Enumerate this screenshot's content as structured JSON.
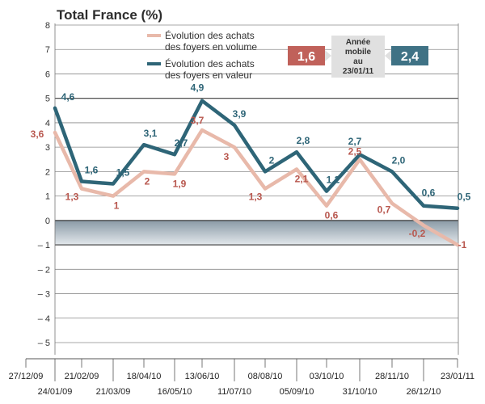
{
  "chart_data": {
    "type": "line",
    "title": "Total France (%)",
    "ylim": [
      -5.3,
      8.3
    ],
    "y_ticks": [
      8,
      7,
      6,
      5,
      4,
      3,
      2,
      1,
      0,
      -1,
      -2,
      -3,
      -4,
      -5
    ],
    "y_tick_labels": [
      "8",
      "7",
      "6",
      "5",
      "4",
      "3",
      "2",
      "1",
      "0",
      "– 1",
      "– 2",
      "– 3",
      "– 4",
      "– 5"
    ],
    "grid": true,
    "x_dates": [
      "27/12/09",
      "24/01/09",
      "21/02/09",
      "21/03/09",
      "18/04/10",
      "16/05/10",
      "13/06/10",
      "11/07/10",
      "08/08/10",
      "05/09/10",
      "03/10/10",
      "31/10/10",
      "28/11/10",
      "26/12/10",
      "23/01/11"
    ],
    "series": [
      {
        "name": "Évolution des achats des foyers en volume",
        "color": "#b8574e",
        "line_color": "#e8b9aa",
        "values": [
          3.6,
          1.3,
          1.0,
          2.0,
          1.9,
          3.7,
          3.0,
          1.3,
          2.1,
          0.6,
          2.5,
          0.7,
          -0.2,
          -1.0
        ],
        "labels": [
          "3,6",
          "1,3",
          "1",
          "2",
          "1,9",
          "3,7",
          "3",
          "1,3",
          "2,1",
          "0,6",
          "2,5",
          "0,7",
          "-0,2",
          "-1"
        ]
      },
      {
        "name": "Évolution des achats des foyers en valeur",
        "color": "#2e6577",
        "line_color": "#2e6577",
        "values": [
          4.6,
          1.6,
          1.5,
          3.1,
          2.7,
          4.9,
          3.9,
          2.0,
          2.8,
          1.2,
          2.7,
          2.0,
          0.6,
          0.5
        ],
        "labels": [
          "4,6",
          "1,6",
          "1,5",
          "3,1",
          "2,7",
          "4,9",
          "3,9",
          "2",
          "2,8",
          "1,2",
          "2,7",
          "2,0",
          "0,6",
          "0,5"
        ]
      }
    ],
    "legend_position": "top-center"
  },
  "legend": {
    "volume_line1": "Évolution des achats",
    "volume_line2": "des foyers en volume",
    "value_line1": "Évolution des achats",
    "value_line2": "des foyers en valeur"
  },
  "annual": {
    "volume": "1,6",
    "value": "2,4",
    "label_line1": "Année",
    "label_line2": "mobile",
    "label_line3": "au",
    "label_line4": "23/01/11",
    "volume_color": "#c0615a",
    "value_color": "#3f7285"
  }
}
